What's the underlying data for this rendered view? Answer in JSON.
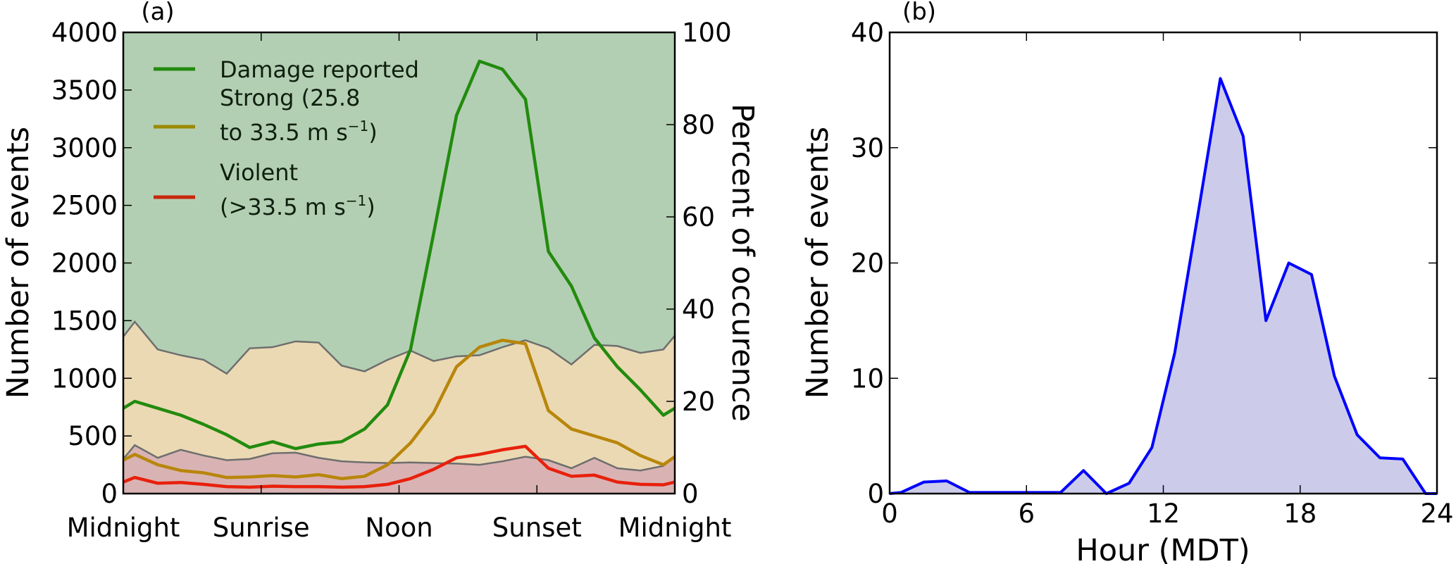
{
  "chart_data": [
    {
      "panel_label": "(a)",
      "type": "area+line",
      "x_tick_values": [
        0,
        6,
        12,
        18,
        24
      ],
      "x_tick_labels": [
        "Midnight",
        "Sunrise",
        "Noon",
        "Sunset",
        "Midnight"
      ],
      "xlim": [
        0,
        24
      ],
      "ylabel_left": "Number of events",
      "ylim_left": [
        0,
        4000
      ],
      "yticks_left": [
        0,
        500,
        1000,
        1500,
        2000,
        2500,
        3000,
        3500,
        4000
      ],
      "ylabel_right": "Percent of occurence",
      "ylim_right": [
        0,
        100
      ],
      "yticks_right": [
        0,
        20,
        40,
        60,
        80,
        100
      ],
      "x": [
        0,
        0.5,
        1.5,
        2.5,
        3.5,
        4.5,
        5.5,
        6.5,
        7.5,
        8.5,
        9.5,
        10.5,
        11.5,
        12.5,
        13.5,
        14.5,
        15.5,
        16.5,
        17.5,
        18.5,
        19.5,
        20.5,
        21.5,
        22.5,
        23.5,
        24
      ],
      "areas": [
        {
          "axis": "left",
          "color": "#ebd9b4",
          "edge": "#6e6e6e",
          "values": [
            1360,
            1490,
            1250,
            1200,
            1160,
            1040,
            1260,
            1270,
            1320,
            1310,
            1110,
            1060,
            1160,
            1240,
            1150,
            1190,
            1200,
            1270,
            1330,
            1260,
            1120,
            1290,
            1280,
            1220,
            1250,
            1370
          ]
        },
        {
          "axis": "left",
          "color": "#d9b3b3",
          "edge": "#6e6e6e",
          "values": [
            300,
            420,
            310,
            380,
            330,
            290,
            300,
            350,
            355,
            310,
            280,
            270,
            265,
            270,
            265,
            260,
            250,
            280,
            320,
            290,
            220,
            310,
            220,
            200,
            240,
            320
          ]
        }
      ],
      "background_color": "#b3cfb3",
      "series": [
        {
          "name": "Damage reported",
          "axis": "right",
          "color": "#228b0e",
          "values": [
            18.5,
            20,
            18.5,
            17,
            15,
            12.75,
            10,
            11.25,
            9.75,
            10.75,
            11.25,
            14,
            19.25,
            31.25,
            56.25,
            82,
            93.75,
            92,
            85.5,
            52.5,
            45,
            33.75,
            27.5,
            22.5,
            17,
            18.5
          ]
        },
        {
          "name_line1": "Strong (25.8",
          "name_line2": "to 33.5 m s",
          "name_sup": "−1",
          "name_close": ")",
          "axis": "right",
          "color": "#b8860b",
          "values": [
            7.25,
            8.5,
            6.25,
            5,
            4.5,
            3.5,
            3.6,
            3.9,
            3.6,
            4.1,
            3.25,
            3.75,
            6.25,
            11,
            17.5,
            27.5,
            31.75,
            33.25,
            32.5,
            18,
            14,
            12.5,
            11,
            8.25,
            6.25,
            8
          ]
        },
        {
          "name_line1": "Violent",
          "name_line2": "(>33.5 m s",
          "name_sup": "−1",
          "name_close": ")",
          "axis": "right",
          "color": "#e8200c",
          "values": [
            2.5,
            3.5,
            2.25,
            2.4,
            2,
            1.5,
            1.4,
            1.6,
            1.5,
            1.5,
            1.4,
            1.5,
            2,
            3.25,
            5.25,
            7.75,
            8.5,
            9.5,
            10.25,
            5.5,
            3.75,
            4,
            2.5,
            2,
            1.9,
            2.5
          ]
        }
      ],
      "legend": "top-left"
    },
    {
      "panel_label": "(b)",
      "type": "area",
      "xlabel": "Hour (MDT)",
      "ylabel": "Number of events",
      "xlim": [
        0,
        24
      ],
      "ylim": [
        0,
        40
      ],
      "xticks": [
        0,
        6,
        12,
        18,
        24
      ],
      "yticks": [
        0,
        10,
        20,
        30,
        40
      ],
      "fill_color": "#ccccea",
      "line_color": "#0000ff",
      "x": [
        0,
        0.5,
        1.5,
        2.5,
        3.5,
        4.5,
        5.5,
        6.5,
        7.5,
        8.5,
        9.5,
        10.5,
        11.5,
        12.5,
        13.5,
        14.5,
        15.5,
        16.5,
        17.5,
        18.5,
        19.5,
        20.5,
        21.5,
        22.5,
        23.5,
        24
      ],
      "values": [
        0,
        0.1,
        1,
        1.1,
        0.1,
        0.1,
        0.1,
        0.1,
        0.1,
        2,
        0,
        0.9,
        4,
        12.2,
        24,
        36,
        31,
        15,
        20,
        19,
        10.2,
        5.1,
        3.1,
        3,
        0,
        0
      ]
    }
  ]
}
